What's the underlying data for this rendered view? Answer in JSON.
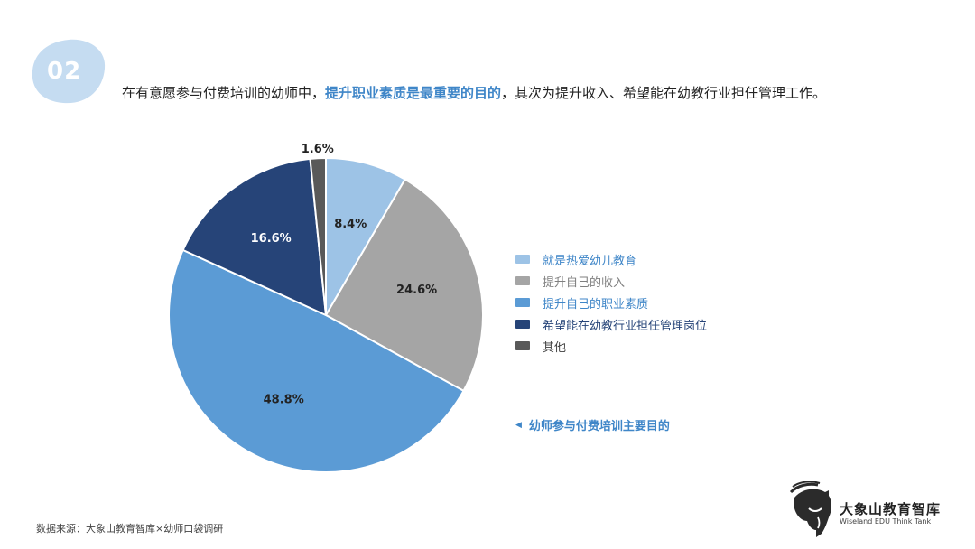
{
  "section": {
    "number": "02",
    "badge_color": "#c5dcf1"
  },
  "headline": {
    "before": "在有意愿参与付费培训的幼师中，",
    "highlight": "提升职业素质是最重要的目的",
    "after": "，其次为提升收入、希望能在幼教行业担任管理工作。",
    "highlight_color": "#3f86c8"
  },
  "chart_data": {
    "type": "pie",
    "unit": "%",
    "start_angle_deg": 0,
    "direction": "clockwise",
    "slices": [
      {
        "label": "就是热爱幼儿教育",
        "value": 8.4,
        "display": "8.4%",
        "color": "#9dc3e6",
        "label_color": "#222222",
        "label_inside": true
      },
      {
        "label": "提升自己的收入",
        "value": 24.6,
        "display": "24.6%",
        "color": "#a5a5a5",
        "label_color": "#222222",
        "label_inside": true
      },
      {
        "label": "提升自己的职业素质",
        "value": 48.8,
        "display": "48.8%",
        "color": "#5b9bd5",
        "label_color": "#222222",
        "label_inside": true
      },
      {
        "label": "希望能在幼教行业担任管理岗位",
        "value": 16.6,
        "display": "16.6%",
        "color": "#264478",
        "label_color": "#ffffff",
        "label_inside": true
      },
      {
        "label": "其他",
        "value": 1.6,
        "display": "1.6%",
        "color": "#595959",
        "label_color": "#222222",
        "label_inside": false
      }
    ]
  },
  "legend": {
    "items": [
      {
        "label": "就是热爱幼儿教育",
        "color": "#9dc3e6",
        "text_color": "#3f86c8"
      },
      {
        "label": "提升自己的收入",
        "color": "#a5a5a5",
        "text_color": "#7f7f7f"
      },
      {
        "label": "提升自己的职业素质",
        "color": "#5b9bd5",
        "text_color": "#3f86c8"
      },
      {
        "label": "希望能在幼教行业担任管理岗位",
        "color": "#264478",
        "text_color": "#264478"
      },
      {
        "label": "其他",
        "color": "#595959",
        "text_color": "#404040"
      }
    ]
  },
  "caption": {
    "marker": "◀",
    "text": "幼师参与付费培训主要目的"
  },
  "source": "数据来源：大象山教育智库×幼师口袋调研",
  "logo": {
    "name_cn": "大象山教育智库",
    "name_en": "Wiseland EDU Think Tank",
    "icon": "elephant-head-icon"
  }
}
